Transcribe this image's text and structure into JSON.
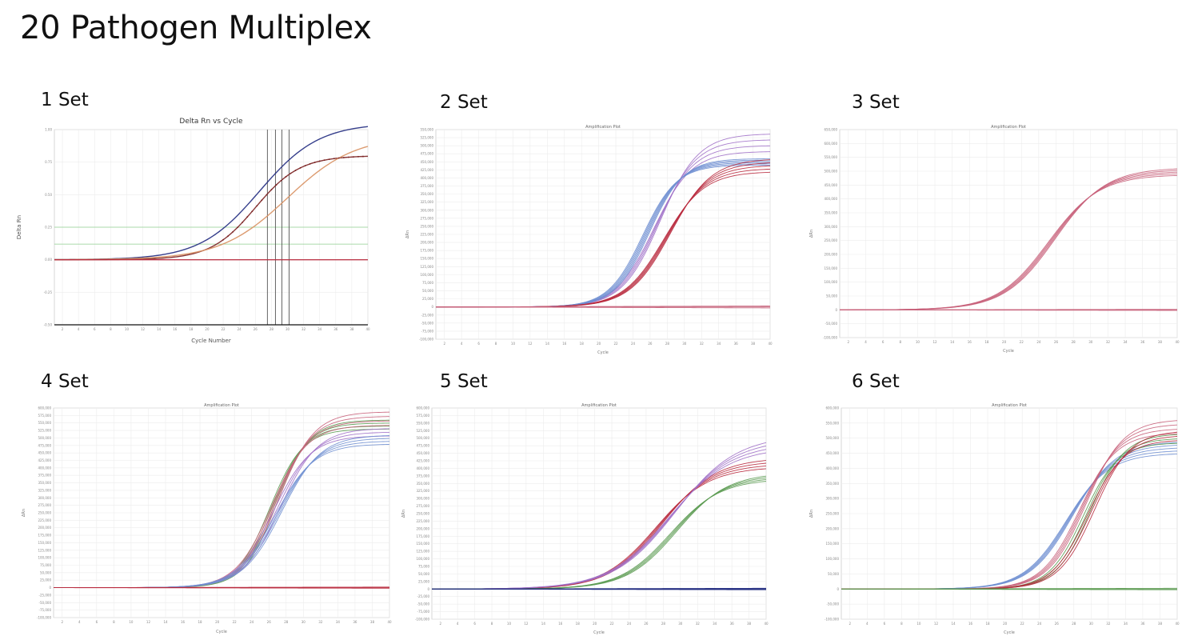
{
  "page": {
    "title": "20 Pathogen Multiplex"
  },
  "colors": {
    "blue": "#6f8fd2",
    "pink": "#c8607a",
    "purple": "#a070c8",
    "red": "#b8283c",
    "green": "#5a9a50",
    "orange": "#d89060",
    "navy": "#202a80",
    "maroon": "#7a2020"
  },
  "chart_data": [
    {
      "label": "1 Set",
      "type": "line",
      "title": "Delta Rn vs Cycle",
      "xlabel": "Cycle Number",
      "ylabel": "Delta Rn",
      "xlim": [
        1,
        40
      ],
      "ylim": [
        -0.5,
        1.0
      ],
      "series": [
        {
          "color": "navy",
          "ct": 26.5,
          "plateau": 1.05,
          "slope": 0.27
        },
        {
          "color": "maroon",
          "ct": 26.0,
          "plateau": 0.8,
          "slope": 0.36
        },
        {
          "color": "orange",
          "ct": 30.0,
          "plateau": 0.95,
          "slope": 0.24
        },
        {
          "color": "red",
          "ct": 0,
          "plateau": 0.0,
          "slope": 0
        }
      ]
    },
    {
      "label": "2 Set",
      "type": "line",
      "title": "Amplification Plot",
      "xlabel": "Cycle",
      "ylabel": "ΔRn",
      "xlim": [
        1,
        40
      ],
      "ylim": [
        -100000,
        550000
      ],
      "series": [
        {
          "color": "purple",
          "ct": 26.8,
          "plateau": 510000,
          "slope": 0.45,
          "count": 4,
          "spread": 55000
        },
        {
          "color": "blue",
          "ct": 25.5,
          "plateau": 450000,
          "slope": 0.5,
          "count": 6,
          "spread": 20000
        },
        {
          "color": "red",
          "ct": 28.0,
          "plateau": 440000,
          "slope": 0.42,
          "count": 5,
          "spread": 40000
        },
        {
          "color": "pink",
          "ct": 0,
          "plateau": 0,
          "slope": 0,
          "count": 3,
          "spread": 6000
        }
      ]
    },
    {
      "label": "3 Set",
      "type": "line",
      "title": "Amplification Plot",
      "xlabel": "Cycle",
      "ylabel": "ΔRn",
      "xlim": [
        1,
        40
      ],
      "ylim": [
        -100000,
        650000
      ],
      "series": [
        {
          "color": "pink",
          "ct": 25.5,
          "plateau": 500000,
          "slope": 0.34,
          "count": 5,
          "spread": 25000
        },
        {
          "color": "pink",
          "ct": 0,
          "plateau": 0,
          "slope": 0,
          "count": 3,
          "spread": 4000
        }
      ]
    },
    {
      "label": "4 Set",
      "type": "line",
      "title": "Amplification Plot",
      "xlabel": "Cycle",
      "ylabel": "ΔRn",
      "xlim": [
        1,
        40
      ],
      "ylim": [
        -100000,
        600000
      ],
      "series": [
        {
          "color": "green",
          "ct": 26.5,
          "plateau": 545000,
          "slope": 0.52,
          "count": 4,
          "spread": 30000
        },
        {
          "color": "pink",
          "ct": 26.7,
          "plateau": 565000,
          "slope": 0.48,
          "count": 4,
          "spread": 45000
        },
        {
          "color": "purple",
          "ct": 26.9,
          "plateau": 520000,
          "slope": 0.46,
          "count": 3,
          "spread": 25000
        },
        {
          "color": "blue",
          "ct": 27.1,
          "plateau": 495000,
          "slope": 0.44,
          "count": 4,
          "spread": 30000
        },
        {
          "color": "red",
          "ct": 0,
          "plateau": 0,
          "slope": 0,
          "count": 3,
          "spread": 4000
        }
      ]
    },
    {
      "label": "5 Set",
      "type": "line",
      "title": "Amplification Plot",
      "xlabel": "Cycle",
      "ylabel": "ΔRn",
      "xlim": [
        1,
        40
      ],
      "ylim": [
        -100000,
        600000
      ],
      "series": [
        {
          "color": "red",
          "ct": 27.5,
          "plateau": 420000,
          "slope": 0.32,
          "count": 4,
          "spread": 30000
        },
        {
          "color": "purple",
          "ct": 29.0,
          "plateau": 490000,
          "slope": 0.28,
          "count": 4,
          "spread": 40000
        },
        {
          "color": "green",
          "ct": 29.2,
          "plateau": 375000,
          "slope": 0.34,
          "count": 4,
          "spread": 20000
        },
        {
          "color": "navy",
          "ct": 0,
          "plateau": 0,
          "slope": 0,
          "count": 4,
          "spread": 5000
        }
      ]
    },
    {
      "label": "6 Set",
      "type": "line",
      "title": "Amplification Plot",
      "xlabel": "Cycle",
      "ylabel": "ΔRn",
      "xlim": [
        1,
        40
      ],
      "ylim": [
        -100000,
        600000
      ],
      "series": [
        {
          "color": "blue",
          "ct": 27.5,
          "plateau": 470000,
          "slope": 0.4,
          "count": 5,
          "spread": 40000
        },
        {
          "color": "pink",
          "ct": 29.0,
          "plateau": 540000,
          "slope": 0.46,
          "count": 4,
          "spread": 45000
        },
        {
          "color": "green",
          "ct": 29.5,
          "plateau": 500000,
          "slope": 0.5,
          "count": 3,
          "spread": 30000
        },
        {
          "color": "red",
          "ct": 30.0,
          "plateau": 510000,
          "slope": 0.48,
          "count": 3,
          "spread": 30000
        },
        {
          "color": "green",
          "ct": 0,
          "plateau": 0,
          "slope": 0,
          "count": 3,
          "spread": 5000
        }
      ]
    }
  ]
}
